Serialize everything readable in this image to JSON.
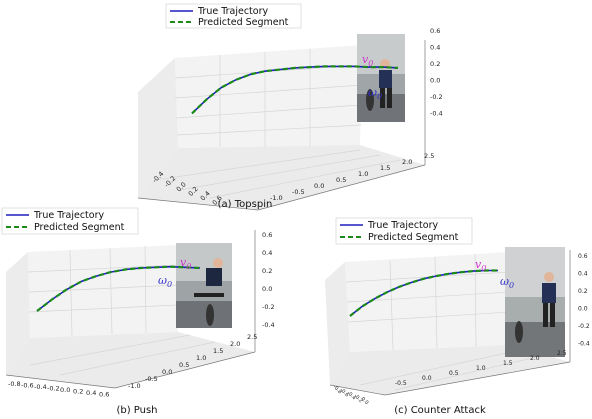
{
  "colors": {
    "true_line": "#1f1fbf",
    "pred_line": "#1a8a1a",
    "v0": "#cc33cc",
    "omega0": "#3333cc",
    "grid": "#d8d8d8",
    "pane": "#f2f2f2"
  },
  "chart_data": [
    {
      "type": "line",
      "projection": "3d",
      "caption": "(a) Topspin",
      "legend": {
        "placement": "top-left",
        "entries": [
          "True Trajectory",
          "Predicted Segment"
        ]
      },
      "series": [
        {
          "name": "True Trajectory",
          "style": "solid",
          "color": "#1f1fbf"
        },
        {
          "name": "Predicted Segment",
          "style": "dashed",
          "color": "#1a8a1a"
        }
      ],
      "x": [
        -0.4,
        -0.2,
        0.0,
        0.2,
        0.4,
        0.6,
        0.8,
        1.0,
        1.2,
        1.4,
        1.6,
        1.8,
        2.0,
        2.2,
        2.4
      ],
      "y": [
        -0.38,
        -0.2,
        -0.05,
        0.05,
        0.12,
        0.16,
        0.18,
        0.2,
        0.21,
        0.22,
        0.22,
        0.22,
        0.21,
        0.21,
        0.2
      ],
      "x_ticks": [
        "-0.4",
        "-0.2",
        "0.0",
        "0.2",
        "0.4",
        "0.6"
      ],
      "y_ticks": [
        "-1.0",
        "-0.5",
        "0.0",
        "0.5",
        "1.0",
        "1.5",
        "2.0",
        "2.5"
      ],
      "z_ticks": [
        "0.6",
        "0.4",
        "0.2",
        "0.0",
        "-0.2",
        "-0.4"
      ],
      "annotations": [
        "v0",
        "ω0"
      ],
      "inset": "photo of player striking ball"
    },
    {
      "type": "line",
      "projection": "3d",
      "caption": "(b) Push",
      "legend": {
        "placement": "top-left",
        "entries": [
          "True Trajectory",
          "Predicted Segment"
        ]
      },
      "series": [
        {
          "name": "True Trajectory",
          "style": "solid",
          "color": "#1f1fbf"
        },
        {
          "name": "Predicted Segment",
          "style": "dashed",
          "color": "#1a8a1a"
        }
      ],
      "x": [
        -0.8,
        -0.6,
        -0.4,
        -0.2,
        0.0,
        0.2,
        0.4,
        0.6,
        0.8,
        1.0,
        1.2,
        1.4
      ],
      "y": [
        -0.42,
        -0.25,
        -0.1,
        0.02,
        0.1,
        0.16,
        0.2,
        0.22,
        0.23,
        0.24,
        0.23,
        0.22
      ],
      "x_ticks": [
        "-0.8",
        "-0.6",
        "-0.4",
        "-0.2",
        "0.0",
        "0.2",
        "0.4",
        "0.6"
      ],
      "y_ticks": [
        "-1.0",
        "-0.5",
        "0.0",
        "0.5",
        "1.0",
        "1.5",
        "2.0",
        "2.5"
      ],
      "z_ticks": [
        "0.6",
        "0.4",
        "0.2",
        "0.0",
        "-0.2",
        "-0.4"
      ],
      "annotations": [
        "v0",
        "ω0"
      ],
      "inset": "photo of player striking ball"
    },
    {
      "type": "line",
      "projection": "3d",
      "caption": "(c) Counter Attack",
      "legend": {
        "placement": "top-left",
        "entries": [
          "True Trajectory",
          "Predicted Segment"
        ]
      },
      "series": [
        {
          "name": "True Trajectory",
          "style": "solid",
          "color": "#1f1fbf"
        },
        {
          "name": "Predicted Segment",
          "style": "dashed",
          "color": "#1a8a1a"
        }
      ],
      "x": [
        -0.5,
        -0.25,
        0.0,
        0.25,
        0.5,
        0.75,
        1.0,
        1.25,
        1.5,
        1.75,
        2.0,
        2.25,
        2.5
      ],
      "y": [
        -0.4,
        -0.22,
        -0.08,
        0.04,
        0.14,
        0.22,
        0.29,
        0.34,
        0.38,
        0.41,
        0.43,
        0.44,
        0.44
      ],
      "x_ticks": [
        "-0.5",
        "0.0",
        "0.5",
        "1.0",
        "1.5",
        "2.0",
        "2.5"
      ],
      "y_ticks": [
        "-0.8",
        "-0.6",
        "-0.4",
        "-0.2",
        "0.0"
      ],
      "z_ticks": [
        "0.6",
        "0.4",
        "0.2",
        "0.0",
        "-0.2",
        "-0.4"
      ],
      "annotations": [
        "v0",
        "ω0"
      ],
      "inset": "photo of player striking ball"
    }
  ]
}
